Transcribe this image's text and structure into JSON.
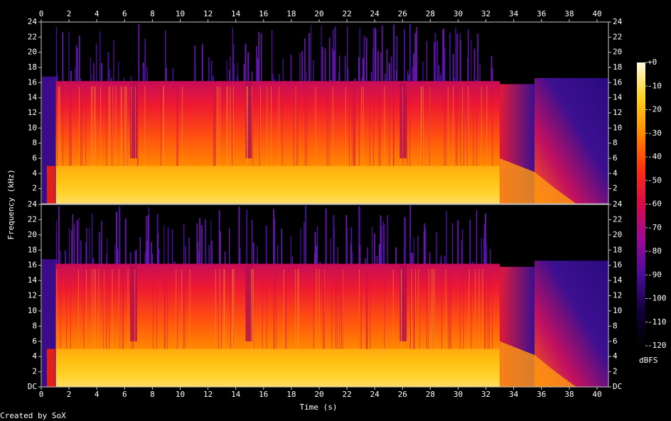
{
  "chart_data": {
    "type": "spectrogram",
    "x_label": "Time (s)",
    "y_label": "Frequency (kHz)",
    "xlim": [
      0,
      40.82
    ],
    "xticks": [
      0,
      2,
      4,
      6,
      8,
      10,
      12,
      14,
      16,
      18,
      20,
      22,
      24,
      26,
      28,
      30,
      32,
      34,
      36,
      38,
      40
    ],
    "channels": [
      {
        "ylim": [
          0,
          24
        ],
        "yticks": [
          2,
          4,
          6,
          8,
          10,
          12,
          14,
          16,
          18,
          20,
          22,
          24
        ]
      },
      {
        "ylim": [
          0,
          24
        ],
        "yticks": [
          {
            "value": 0,
            "label": "DC"
          },
          2,
          4,
          6,
          8,
          10,
          12,
          14,
          16,
          18,
          20,
          22,
          24
        ]
      }
    ],
    "colorbar": {
      "label": "dBFS",
      "lim": [
        -120,
        0
      ],
      "ticks": [
        {
          "value": 0,
          "label": "+0"
        },
        -10,
        -20,
        -30,
        -40,
        -50,
        -60,
        -70,
        -80,
        -90,
        -100,
        -110,
        -120
      ],
      "colormap": [
        "#000000",
        "#12003c",
        "#4a0c98",
        "#9a0a9a",
        "#d80a48",
        "#ff3010",
        "#ff8a00",
        "#ffd21e",
        "#fffbe0"
      ]
    },
    "footer": "Created by SoX"
  }
}
